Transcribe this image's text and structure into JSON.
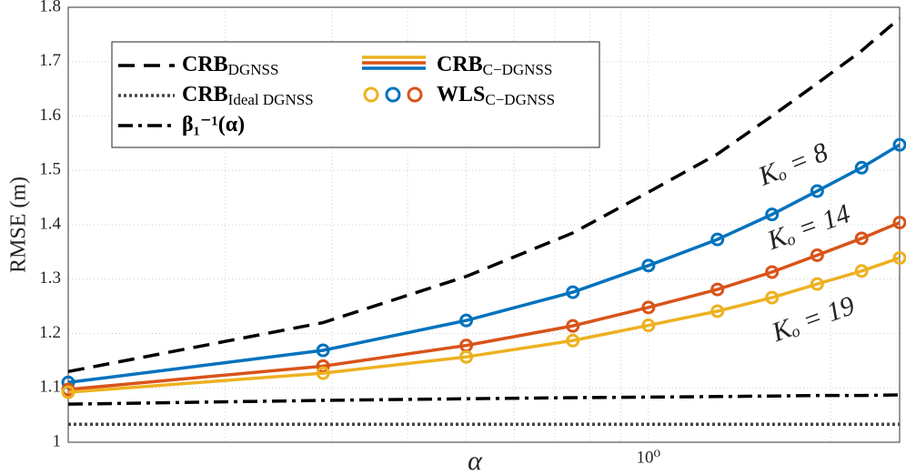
{
  "chart_data": {
    "type": "line",
    "x_label": "α",
    "y_label": "RMSE (m)",
    "xscale": "log",
    "grid": true,
    "x": [
      0.11,
      0.29,
      0.5,
      0.75,
      1,
      1.3,
      1.6,
      1.9,
      2.25,
      2.6
    ],
    "xlim": [
      0.11,
      2.6
    ],
    "xticks": [
      {
        "value": 1,
        "label": "10⁰"
      }
    ],
    "xminorticks": [
      0.2,
      0.3,
      0.4,
      0.5,
      0.6,
      0.7,
      0.8,
      0.9,
      2
    ],
    "ylim": [
      1,
      1.8
    ],
    "yticks": [
      1,
      1.1,
      1.2,
      1.3,
      1.4,
      1.5,
      1.6,
      1.7,
      1.8
    ],
    "series": [
      {
        "name": "CRB",
        "sub": "DGNSS",
        "color": "#000000",
        "dash": "18 10",
        "values": [
          1.13,
          1.22,
          1.305,
          1.385,
          1.46,
          1.53,
          1.6,
          1.66,
          1.72,
          1.78
        ]
      },
      {
        "name": "CRB",
        "sub": "Ideal DGNSS",
        "color": "#444444",
        "dash": "3 3",
        "values": [
          1.033,
          1.033,
          1.033,
          1.033,
          1.033,
          1.033,
          1.033,
          1.033,
          1.033,
          1.033
        ]
      },
      {
        "name": "β₁⁻¹(α)",
        "color": "#000000",
        "dash": "16 6 4 6",
        "values": [
          1.07,
          1.077,
          1.08,
          1.082,
          1.083,
          1.084,
          1.085,
          1.086,
          1.086,
          1.087
        ]
      },
      {
        "name": "Kₒ = 8",
        "color": "#0072bd",
        "markers": true,
        "values": [
          1.11,
          1.169,
          1.224,
          1.276,
          1.325,
          1.373,
          1.419,
          1.462,
          1.505,
          1.547
        ]
      },
      {
        "name": "Kₒ = 14",
        "color": "#d95319",
        "markers": true,
        "values": [
          1.097,
          1.14,
          1.178,
          1.214,
          1.248,
          1.281,
          1.313,
          1.344,
          1.375,
          1.404
        ]
      },
      {
        "name": "Kₒ = 19",
        "color": "#edb120",
        "markers": true,
        "values": [
          1.092,
          1.127,
          1.157,
          1.187,
          1.215,
          1.241,
          1.266,
          1.291,
          1.315,
          1.339
        ]
      }
    ],
    "legend": [
      {
        "main": "CRB",
        "sub": "C−DGNSS"
      },
      {
        "main": "WLS",
        "sub": "C−DGNSS"
      }
    ]
  }
}
